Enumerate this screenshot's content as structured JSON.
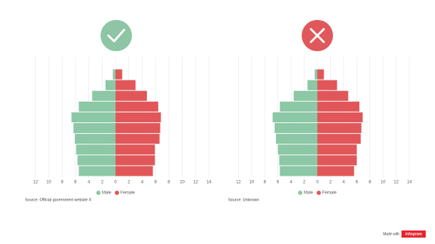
{
  "chart_data": [
    {
      "type": "bar",
      "orientation": "horizontal",
      "categories": [
        null,
        null,
        null,
        null,
        null,
        null,
        null,
        null,
        null,
        null
      ],
      "series": [
        {
          "name": "Male",
          "color": "#8cc7a6",
          "values": [
            -0.4,
            -1.5,
            -3.5,
            -5.5,
            -6.6,
            -6.3,
            -6.1,
            -5.9,
            -5.7,
            -5.5
          ]
        },
        {
          "name": "Female",
          "color": "#e15759",
          "values": [
            1.0,
            3.0,
            4.7,
            6.4,
            6.8,
            6.7,
            6.6,
            5.9,
            5.9,
            5.6
          ]
        }
      ],
      "xlim": [
        -14,
        14
      ],
      "xticks": [
        {
          "value": -12,
          "label": "12"
        },
        {
          "value": -10,
          "label": "10"
        },
        {
          "value": -8,
          "label": "8"
        },
        {
          "value": -6,
          "label": "6"
        },
        {
          "value": -4,
          "label": "4"
        },
        {
          "value": -2,
          "label": "2"
        },
        0,
        2,
        4,
        6,
        8,
        10,
        12,
        14
      ],
      "grid": true,
      "legend": "bottom",
      "source": "Source: Official government website X"
    },
    {
      "type": "bar",
      "orientation": "horizontal",
      "categories": [
        null,
        null,
        null,
        null,
        null,
        null,
        null,
        null,
        null,
        null
      ],
      "series": [
        {
          "name": "Male",
          "color": "#8cc7a6",
          "values": [
            -0.4,
            -1.5,
            -3.6,
            -5.7,
            -6.8,
            -6.5,
            -6.3,
            -6.0,
            -5.8,
            -5.7
          ]
        },
        {
          "name": "Female",
          "color": "#e15759",
          "values": [
            1.0,
            3.0,
            4.7,
            6.4,
            6.9,
            6.7,
            6.6,
            6.0,
            6.0,
            5.6
          ]
        }
      ],
      "xlim": [
        -14,
        14
      ],
      "xticks": [
        {
          "value": -12,
          "label": "12"
        },
        {
          "value": -10,
          "label": "10"
        },
        {
          "value": -8,
          "label": "8"
        },
        {
          "value": -6,
          "label": "6"
        },
        {
          "value": -4,
          "label": "4"
        },
        {
          "value": -2,
          "label": "2"
        },
        0,
        2,
        4,
        6,
        8,
        10,
        12,
        14
      ],
      "grid": true,
      "legend": "bottom",
      "source": "Source: Unknown"
    }
  ],
  "footer": {
    "made_with": "Made with",
    "brand": "infogram"
  }
}
